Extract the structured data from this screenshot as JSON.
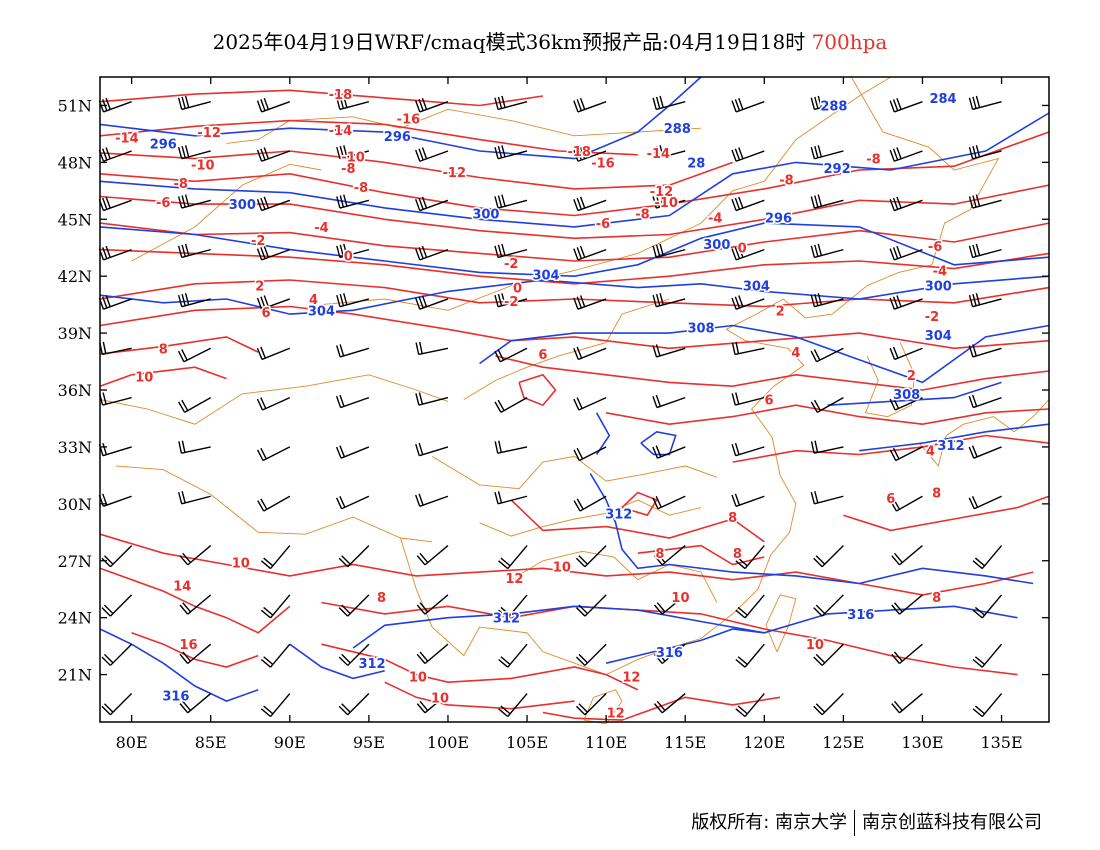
{
  "header": {
    "title": "2025年04月19日WRF/cmaq模式36km预报产品:04月19日18时",
    "level": "700hpa"
  },
  "map": {
    "lon_range": [
      78,
      138
    ],
    "lat_range": [
      18.5,
      52.5
    ],
    "lat_ticks": [
      {
        "lat": 51,
        "label": "51N"
      },
      {
        "lat": 48,
        "label": "48N"
      },
      {
        "lat": 45,
        "label": "45N"
      },
      {
        "lat": 42,
        "label": "42N"
      },
      {
        "lat": 39,
        "label": "39N"
      },
      {
        "lat": 36,
        "label": "36N"
      },
      {
        "lat": 33,
        "label": "33N"
      },
      {
        "lat": 30,
        "label": "30N"
      },
      {
        "lat": 27,
        "label": "27N"
      },
      {
        "lat": 24,
        "label": "24N"
      },
      {
        "lat": 21,
        "label": "21N"
      }
    ],
    "lon_ticks": [
      {
        "lon": 80,
        "label": "80E"
      },
      {
        "lon": 85,
        "label": "85E"
      },
      {
        "lon": 90,
        "label": "90E"
      },
      {
        "lon": 95,
        "label": "95E"
      },
      {
        "lon": 100,
        "label": "100E"
      },
      {
        "lon": 105,
        "label": "105E"
      },
      {
        "lon": 110,
        "label": "110E"
      },
      {
        "lon": 115,
        "label": "115E"
      },
      {
        "lon": 120,
        "label": "120E"
      },
      {
        "lon": 125,
        "label": "125E"
      },
      {
        "lon": 130,
        "label": "130E"
      },
      {
        "lon": 135,
        "label": "135E"
      }
    ],
    "colors": {
      "temperature": "#e8302c",
      "height": "#1f3fe0",
      "boundary": "#e08a2c",
      "barb": "#000000"
    },
    "temperature_labels": [
      {
        "text": "-18",
        "lon": 93.2,
        "lat": 51.6
      },
      {
        "text": "-16",
        "lon": 97.5,
        "lat": 50.3
      },
      {
        "text": "-14",
        "lon": 79.7,
        "lat": 49.3
      },
      {
        "text": "-12",
        "lon": 84.9,
        "lat": 49.6
      },
      {
        "text": "-14",
        "lon": 93.2,
        "lat": 49.7
      },
      {
        "text": "-10",
        "lon": 84.5,
        "lat": 47.9
      },
      {
        "text": "-8",
        "lon": 83.1,
        "lat": 46.9
      },
      {
        "text": "-10",
        "lon": 94.0,
        "lat": 48.3
      },
      {
        "text": "-8",
        "lon": 93.7,
        "lat": 47.7
      },
      {
        "text": "-12",
        "lon": 100.4,
        "lat": 47.5
      },
      {
        "text": "-8",
        "lon": 94.5,
        "lat": 46.7
      },
      {
        "text": "-6",
        "lon": 82.0,
        "lat": 45.9
      },
      {
        "text": "-4",
        "lon": 92.0,
        "lat": 44.6
      },
      {
        "text": "-18",
        "lon": 108.3,
        "lat": 48.6
      },
      {
        "text": "-16",
        "lon": 109.8,
        "lat": 48.0
      },
      {
        "text": "-14",
        "lon": 113.3,
        "lat": 48.5
      },
      {
        "text": "-12",
        "lon": 113.5,
        "lat": 46.5
      },
      {
        "text": "-10",
        "lon": 113.8,
        "lat": 45.9
      },
      {
        "text": "-8",
        "lon": 112.3,
        "lat": 45.3
      },
      {
        "text": "-6",
        "lon": 109.8,
        "lat": 44.8
      },
      {
        "text": "-4",
        "lon": 116.9,
        "lat": 45.1
      },
      {
        "text": "-2",
        "lon": 88.0,
        "lat": 43.9
      },
      {
        "text": "-2",
        "lon": 104.0,
        "lat": 42.7
      },
      {
        "text": "0",
        "lon": 93.7,
        "lat": 43.1
      },
      {
        "text": "0",
        "lon": 104.4,
        "lat": 41.4
      },
      {
        "text": "0",
        "lon": 118.6,
        "lat": 43.5
      },
      {
        "text": "-2",
        "lon": 104.0,
        "lat": 40.7
      },
      {
        "text": "2",
        "lon": 88.1,
        "lat": 41.5
      },
      {
        "text": "4",
        "lon": 91.5,
        "lat": 40.8
      },
      {
        "text": "6",
        "lon": 88.5,
        "lat": 40.1
      },
      {
        "text": "8",
        "lon": 82.0,
        "lat": 38.2
      },
      {
        "text": "10",
        "lon": 80.8,
        "lat": 36.7
      },
      {
        "text": "6",
        "lon": 106.0,
        "lat": 37.9
      },
      {
        "text": "2",
        "lon": 121.0,
        "lat": 40.2
      },
      {
        "text": "4",
        "lon": 122.0,
        "lat": 38.0
      },
      {
        "text": "6",
        "lon": 120.3,
        "lat": 35.5
      },
      {
        "text": "-8",
        "lon": 121.4,
        "lat": 47.1
      },
      {
        "text": "-8",
        "lon": 126.9,
        "lat": 48.2
      },
      {
        "text": "-6",
        "lon": 130.8,
        "lat": 43.6
      },
      {
        "text": "-4",
        "lon": 131.1,
        "lat": 42.3
      },
      {
        "text": "-2",
        "lon": 130.6,
        "lat": 39.9
      },
      {
        "text": "2",
        "lon": 129.3,
        "lat": 36.8
      },
      {
        "text": "4",
        "lon": 130.5,
        "lat": 32.8
      },
      {
        "text": "6",
        "lon": 128.0,
        "lat": 30.3
      },
      {
        "text": "8",
        "lon": 130.9,
        "lat": 30.6
      },
      {
        "text": "8",
        "lon": 118.0,
        "lat": 29.3
      },
      {
        "text": "8",
        "lon": 113.4,
        "lat": 27.4
      },
      {
        "text": "8",
        "lon": 118.3,
        "lat": 27.4
      },
      {
        "text": "8",
        "lon": 130.9,
        "lat": 25.1
      },
      {
        "text": "10",
        "lon": 86.9,
        "lat": 26.9
      },
      {
        "text": "14",
        "lon": 83.2,
        "lat": 25.7
      },
      {
        "text": "8",
        "lon": 95.8,
        "lat": 25.1
      },
      {
        "text": "12",
        "lon": 104.2,
        "lat": 26.1
      },
      {
        "text": "10",
        "lon": 107.2,
        "lat": 26.7
      },
      {
        "text": "10",
        "lon": 114.7,
        "lat": 25.1
      },
      {
        "text": "10",
        "lon": 123.2,
        "lat": 22.6
      },
      {
        "text": "16",
        "lon": 83.6,
        "lat": 22.6
      },
      {
        "text": "10",
        "lon": 98.1,
        "lat": 20.9
      },
      {
        "text": "10",
        "lon": 99.5,
        "lat": 19.8
      },
      {
        "text": "12",
        "lon": 111.6,
        "lat": 20.9
      },
      {
        "text": "12",
        "lon": 110.6,
        "lat": 19.0
      }
    ],
    "height_labels": [
      {
        "text": "296",
        "lon": 82.0,
        "lat": 49.0
      },
      {
        "text": "296",
        "lon": 96.8,
        "lat": 49.4
      },
      {
        "text": "300",
        "lon": 87.0,
        "lat": 45.8
      },
      {
        "text": "300",
        "lon": 102.4,
        "lat": 45.3
      },
      {
        "text": "304",
        "lon": 92.0,
        "lat": 40.2
      },
      {
        "text": "304",
        "lon": 106.2,
        "lat": 42.1
      },
      {
        "text": "288",
        "lon": 114.5,
        "lat": 49.8
      },
      {
        "text": "288",
        "lon": 124.4,
        "lat": 51.0
      },
      {
        "text": "284",
        "lon": 131.3,
        "lat": 51.4
      },
      {
        "text": "28",
        "lon": 115.7,
        "lat": 48.0
      },
      {
        "text": "292",
        "lon": 124.6,
        "lat": 47.7
      },
      {
        "text": "296",
        "lon": 120.9,
        "lat": 45.1
      },
      {
        "text": "300",
        "lon": 117.0,
        "lat": 43.7
      },
      {
        "text": "304",
        "lon": 119.5,
        "lat": 41.5
      },
      {
        "text": "300",
        "lon": 131.0,
        "lat": 41.5
      },
      {
        "text": "304",
        "lon": 131.0,
        "lat": 38.9
      },
      {
        "text": "308",
        "lon": 116.0,
        "lat": 39.3
      },
      {
        "text": "308",
        "lon": 129.0,
        "lat": 35.8
      },
      {
        "text": "312",
        "lon": 131.8,
        "lat": 33.1
      },
      {
        "text": "312",
        "lon": 110.8,
        "lat": 29.5
      },
      {
        "text": "312",
        "lon": 103.7,
        "lat": 24.0
      },
      {
        "text": "316",
        "lon": 126.1,
        "lat": 24.2
      },
      {
        "text": "316",
        "lon": 114.0,
        "lat": 22.2
      },
      {
        "text": "312",
        "lon": 95.2,
        "lat": 21.6
      },
      {
        "text": "316",
        "lon": 82.8,
        "lat": 19.9
      }
    ]
  },
  "footer": {
    "left": "版权所有: 南京大学",
    "right": "南京创蓝科技有限公司"
  }
}
